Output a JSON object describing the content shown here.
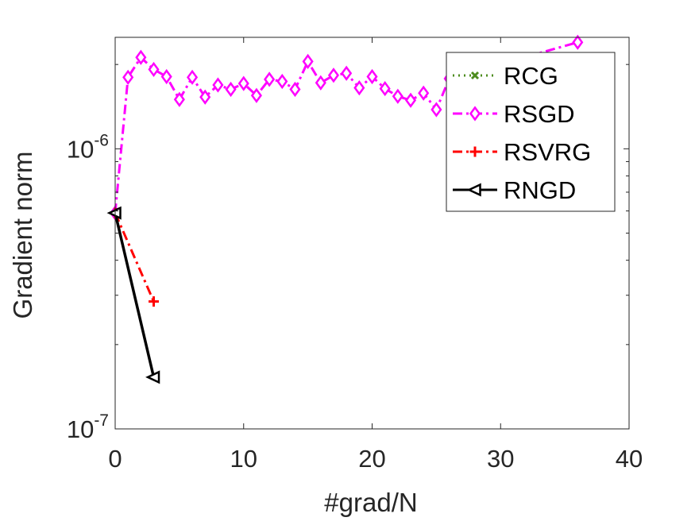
{
  "chart_data": {
    "type": "line",
    "xlabel": "#grad/N",
    "ylabel": "Gradient norm",
    "xlim": [
      0,
      40
    ],
    "ylim": [
      1e-07,
      2.5e-06
    ],
    "yscale": "log",
    "grid": false,
    "legend_position": "top-right",
    "x_ticks": [
      0,
      10,
      20,
      30,
      40
    ],
    "x_tick_labels": [
      "0",
      "10",
      "20",
      "30",
      "40"
    ],
    "y_tick_labels": [
      {
        "value": 1e-07,
        "base": "10",
        "exp": "-7"
      },
      {
        "value": 1e-06,
        "base": "10",
        "exp": "-6"
      }
    ],
    "series": [
      {
        "name": "RCG",
        "color": "#4D8C1E",
        "line_style": "dotted",
        "marker": "x",
        "x": [],
        "y": []
      },
      {
        "name": "RSGD",
        "color": "#FF00FF",
        "line_style": "dashdot",
        "marker": "diamond",
        "x": [
          0,
          1,
          2,
          3,
          4,
          5,
          6,
          7,
          8,
          9,
          10,
          11,
          12,
          13,
          14,
          15,
          16,
          17,
          18,
          19,
          20,
          21,
          22,
          23,
          24,
          25,
          26,
          36
        ],
        "y": [
          5.9e-07,
          1.8e-06,
          2.12e-06,
          1.92e-06,
          1.81e-06,
          1.5e-06,
          1.8e-06,
          1.53e-06,
          1.69e-06,
          1.63e-06,
          1.71e-06,
          1.55e-06,
          1.77e-06,
          1.74e-06,
          1.63e-06,
          2.05e-06,
          1.72e-06,
          1.83e-06,
          1.86e-06,
          1.65e-06,
          1.81e-06,
          1.64e-06,
          1.54e-06,
          1.49e-06,
          1.58e-06,
          1.38e-06,
          1.78e-06,
          2.4e-06
        ]
      },
      {
        "name": "RSVRG",
        "color": "#FF0000",
        "line_style": "dashdot",
        "marker": "plus",
        "x": [
          0,
          3
        ],
        "y": [
          5.9e-07,
          2.85e-07
        ]
      },
      {
        "name": "RNGD",
        "color": "#000000",
        "line_style": "solid",
        "marker": "triangle-left",
        "x": [
          0,
          3
        ],
        "y": [
          5.9e-07,
          1.53e-07
        ]
      }
    ]
  }
}
